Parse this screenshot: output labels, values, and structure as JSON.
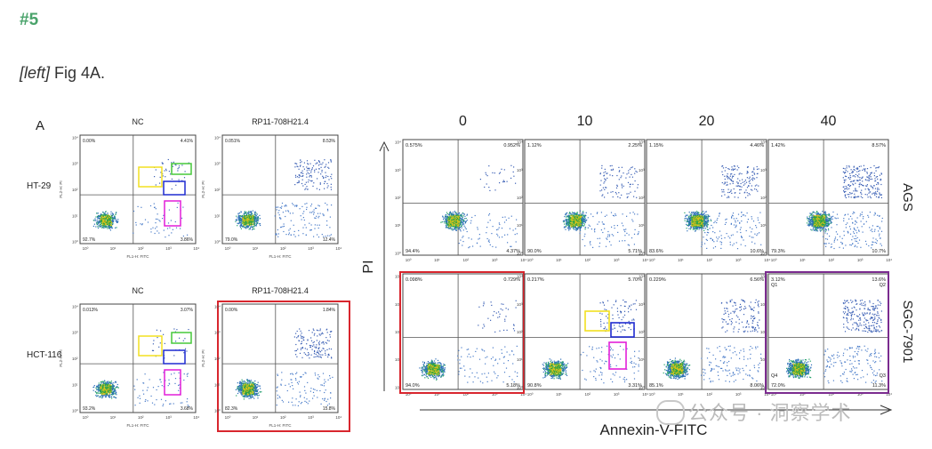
{
  "section_number": "#5",
  "caption": {
    "prefix": "[left]",
    "text": "Fig 4A."
  },
  "left_panel": {
    "panel_letter": "A",
    "axis_x": "FL1-H: FITC",
    "axis_y": "FL2-H: PI",
    "rows": [
      {
        "label": "HT-29",
        "plots": [
          {
            "title": "NC",
            "q": [
              "0.00%",
              "4.41%",
              "92.7%",
              "3.86%"
            ]
          },
          {
            "title": "RP11-708H21.4",
            "q": [
              "0.051%",
              "8.53%",
              "79.0%",
              "12.4%"
            ]
          }
        ]
      },
      {
        "label": "HCT-116",
        "plots": [
          {
            "title": "NC",
            "q": [
              "0.013%",
              "3.07%",
              "93.2%",
              "3.68%"
            ]
          },
          {
            "title": "RP11-708H21.4",
            "q": [
              "0.00%",
              "1.84%",
              "82.3%",
              "15.8%"
            ]
          }
        ]
      }
    ]
  },
  "right_panel": {
    "doses": [
      "0",
      "10",
      "20",
      "40"
    ],
    "y_axis": "PI",
    "x_axis": "Annexin-V-FITC",
    "rows": [
      {
        "label": "AGS",
        "plots": [
          {
            "q": [
              "0.575%",
              "0.952%",
              "94.4%",
              "4.37%"
            ]
          },
          {
            "q": [
              "1.12%",
              "2.25%",
              "90.0%",
              "5.71%"
            ]
          },
          {
            "q": [
              "1.15%",
              "4.46%",
              "83.6%",
              "10.6%"
            ]
          },
          {
            "q": [
              "1.42%",
              "8.57%",
              "79.3%",
              "10.7%"
            ]
          }
        ]
      },
      {
        "label": "SGC-7901",
        "plots": [
          {
            "q": [
              "0.098%",
              "0.729%",
              "94.0%",
              "5.18%"
            ]
          },
          {
            "q": [
              "0.217%",
              "5.70%",
              "90.8%",
              "3.31%"
            ]
          },
          {
            "q": [
              "0.229%",
              "6.56%",
              "85.1%",
              "8.06%"
            ]
          },
          {
            "q": [
              "3.12%",
              "13.6%",
              "72.0%",
              "11.3%"
            ],
            "quadrant_labels": [
              "Q1",
              "Q2",
              "Q4",
              "Q3"
            ]
          }
        ]
      }
    ]
  },
  "watermark": "公众号 · 洞察学术",
  "colors": {
    "highlight_red": "#d8262e",
    "highlight_purple": "#7b2c8f",
    "box_yellow": "#f2e020",
    "box_green": "#46c83a",
    "box_blue": "#1f2bd0",
    "box_magenta": "#e21fd9"
  }
}
